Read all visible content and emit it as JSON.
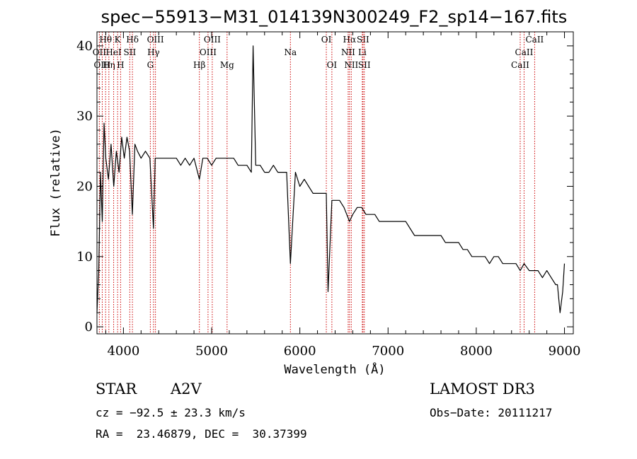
{
  "chart_data": {
    "type": "line",
    "title": "spec−55913−M31_014139N300249_F2_sp14−167.fits",
    "xlabel": "Wavelength (Å)",
    "ylabel": "Flux (relative)",
    "xlim": [
      3700,
      9100
    ],
    "ylim": [
      -1,
      42
    ],
    "xticks": [
      4000,
      5000,
      6000,
      7000,
      8000,
      9000
    ],
    "yticks": [
      0,
      10,
      20,
      30,
      40
    ],
    "grid": false,
    "series": [
      {
        "x": [
          3700,
          3720,
          3740,
          3760,
          3780,
          3800,
          3830,
          3860,
          3890,
          3920,
          3950,
          3980,
          4010,
          4040,
          4070,
          4101,
          4130,
          4160,
          4200,
          4250,
          4300,
          4340,
          4360,
          4400,
          4450,
          4500,
          4550,
          4600,
          4650,
          4700,
          4750,
          4800,
          4861,
          4900,
          4950,
          5000,
          5050,
          5100,
          5150,
          5200,
          5250,
          5300,
          5350,
          5400,
          5450,
          5470,
          5500,
          5550,
          5600,
          5650,
          5700,
          5750,
          5800,
          5850,
          5893,
          5950,
          6000,
          6050,
          6100,
          6150,
          6200,
          6250,
          6300,
          6320,
          6363,
          6400,
          6450,
          6500,
          6563,
          6600,
          6650,
          6700,
          6750,
          6800,
          6850,
          6900,
          6950,
          7000,
          7050,
          7100,
          7150,
          7200,
          7250,
          7300,
          7350,
          7400,
          7450,
          7500,
          7550,
          7600,
          7650,
          7700,
          7750,
          7800,
          7850,
          7900,
          7950,
          8000,
          8050,
          8100,
          8150,
          8200,
          8250,
          8300,
          8350,
          8400,
          8450,
          8498,
          8542,
          8600,
          8662,
          8700,
          8750,
          8800,
          8850,
          8900,
          8920,
          8950,
          8980,
          9000
        ],
        "y": [
          2,
          8,
          22,
          15,
          29,
          24,
          21,
          26,
          20,
          25,
          22,
          27,
          24,
          27,
          25,
          16,
          26,
          25,
          24,
          25,
          24,
          14,
          24,
          24,
          24,
          24,
          24,
          24,
          23,
          24,
          23,
          24,
          21,
          24,
          24,
          23,
          24,
          24,
          24,
          24,
          24,
          23,
          23,
          23,
          22,
          40,
          23,
          23,
          22,
          22,
          23,
          22,
          22,
          22,
          9,
          22,
          20,
          21,
          20,
          19,
          19,
          19,
          19,
          5,
          18,
          18,
          18,
          17,
          15,
          16,
          17,
          17,
          16,
          16,
          16,
          15,
          15,
          15,
          15,
          15,
          15,
          15,
          14,
          13,
          13,
          13,
          13,
          13,
          13,
          13,
          12,
          12,
          12,
          12,
          11,
          11,
          10,
          10,
          10,
          10,
          9,
          10,
          10,
          9,
          9,
          9,
          9,
          8,
          9,
          8,
          8,
          8,
          7,
          8,
          7,
          6,
          6,
          2,
          5,
          9
        ]
      }
    ],
    "lines": [
      {
        "name": "Hθ",
        "x": 3798,
        "row": 0,
        "side": "top"
      },
      {
        "name": "OII",
        "x": 3727,
        "row": 1,
        "side": "top"
      },
      {
        "name": "OIII",
        "x": 3760,
        "row": 2,
        "side": "top"
      },
      {
        "name": "Hη",
        "x": 3835,
        "row": 2,
        "side": "top"
      },
      {
        "name": "HeI",
        "x": 3889,
        "row": 1,
        "side": "top"
      },
      {
        "name": "K",
        "x": 3934,
        "row": 0,
        "side": "top"
      },
      {
        "name": "H",
        "x": 3968,
        "row": 2,
        "side": "top"
      },
      {
        "name": "SII",
        "x": 4072,
        "row": 1,
        "side": "top"
      },
      {
        "name": "Hδ",
        "x": 4102,
        "row": 0,
        "side": "top"
      },
      {
        "name": "OIII",
        "x": 4363,
        "row": 0,
        "side": "top"
      },
      {
        "name": "Hγ",
        "x": 4341,
        "row": 1,
        "side": "top"
      },
      {
        "name": "G",
        "x": 4305,
        "row": 2,
        "side": "top"
      },
      {
        "name": "Hβ",
        "x": 4861,
        "row": 2,
        "side": "top"
      },
      {
        "name": "OIII",
        "x": 5007,
        "row": 0,
        "side": "top"
      },
      {
        "name": "OIII",
        "x": 4959,
        "row": 1,
        "side": "top"
      },
      {
        "name": "Mg",
        "x": 5175,
        "row": 2,
        "side": "top"
      },
      {
        "name": "Na",
        "x": 5893,
        "row": 1,
        "side": "top"
      },
      {
        "name": "OI",
        "x": 6300,
        "row": 0,
        "side": "top"
      },
      {
        "name": "OI",
        "x": 6363,
        "row": 2,
        "side": "top"
      },
      {
        "name": "Hα",
        "x": 6563,
        "row": 0,
        "side": "top"
      },
      {
        "name": "NII",
        "x": 6548,
        "row": 1,
        "side": "top"
      },
      {
        "name": "NII",
        "x": 6583,
        "row": 2,
        "side": "top"
      },
      {
        "name": "SII",
        "x": 6716,
        "row": 0,
        "side": "top"
      },
      {
        "name": "Li",
        "x": 6708,
        "row": 1,
        "side": "top"
      },
      {
        "name": "SII",
        "x": 6731,
        "row": 2,
        "side": "top"
      },
      {
        "name": "CaII",
        "x": 8662,
        "row": 0,
        "side": "top"
      },
      {
        "name": "CaII",
        "x": 8542,
        "row": 1,
        "side": "top"
      },
      {
        "name": "CaII",
        "x": 8498,
        "row": 2,
        "side": "top"
      }
    ]
  },
  "info": {
    "class": "STAR",
    "subclass": "A2V",
    "survey": "LAMOST DR3",
    "cz": "cz = −92.5 ± 23.3 km/s",
    "obs_date": "Obs−Date: 20111217",
    "coords": "RA =  23.46879, DEC =  30.37399"
  },
  "colors": {
    "spectrum": "#000000",
    "line_markers": "#cc0000",
    "axes": "#000000"
  }
}
